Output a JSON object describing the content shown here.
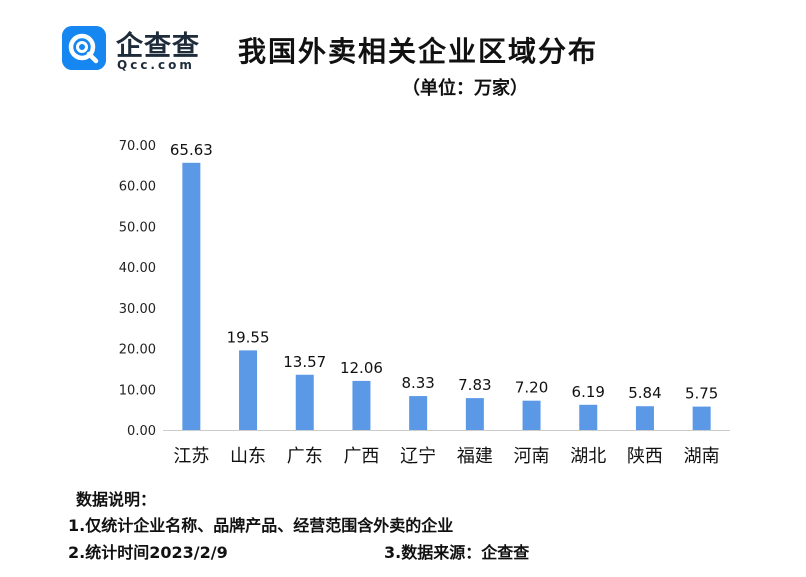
{
  "brand": {
    "name": "企查查",
    "domain": "Qcc.com",
    "logo_color": "#1686f0",
    "icon": "qcc-magnifier-logo-icon"
  },
  "chart_data": {
    "type": "bar",
    "title": "我国外卖相关企业区域分布",
    "subtitle": "（单位：万家）",
    "categories": [
      "江苏",
      "山东",
      "广东",
      "广西",
      "辽宁",
      "福建",
      "河南",
      "湖北",
      "陕西",
      "湖南"
    ],
    "values": [
      65.63,
      19.55,
      13.57,
      12.06,
      8.33,
      7.83,
      7.2,
      6.19,
      5.84,
      5.75
    ],
    "data_labels": [
      "65.63",
      "19.55",
      "13.57",
      "12.06",
      "8.33",
      "7.83",
      "7.20",
      "6.19",
      "5.84",
      "5.75"
    ],
    "y_ticks": [
      "0.00",
      "10.00",
      "20.00",
      "30.00",
      "40.00",
      "50.00",
      "60.00",
      "70.00"
    ],
    "ylim": [
      0,
      70
    ],
    "grid": false,
    "bar_color": "#5b98e6",
    "axis_color": "#cccccc"
  },
  "notes": {
    "heading": "数据说明：",
    "item1": "1.仅统计企业名称、品牌产品、经营范围含外卖的企业",
    "item2": "2.统计时间2023/2/9",
    "item3": "3.数据来源：企查查"
  }
}
